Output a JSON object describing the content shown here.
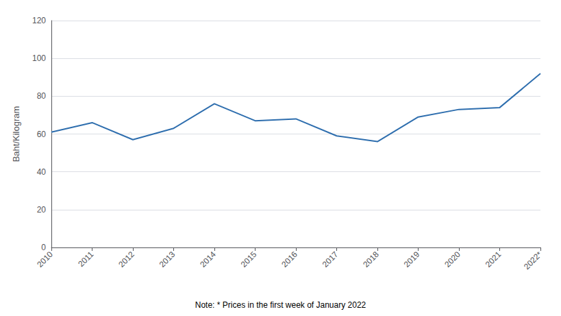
{
  "chart_data": {
    "type": "line",
    "categories": [
      "2010",
      "2011",
      "2012",
      "2013",
      "2014",
      "2015",
      "2016",
      "2017",
      "2018",
      "2019",
      "2020",
      "2021",
      "2022*"
    ],
    "values": [
      61,
      66,
      57,
      63,
      76,
      67,
      68,
      59,
      56,
      69,
      73,
      74,
      92
    ],
    "color": "#2E6EAE",
    "ylabel": "Baht/Kilogram",
    "ylim": [
      0,
      120
    ],
    "yticks": [
      0,
      20,
      40,
      60,
      80,
      100,
      120
    ],
    "grid": true,
    "annotations": [
      "Note: * Prices in the first week of January 2022"
    ]
  }
}
